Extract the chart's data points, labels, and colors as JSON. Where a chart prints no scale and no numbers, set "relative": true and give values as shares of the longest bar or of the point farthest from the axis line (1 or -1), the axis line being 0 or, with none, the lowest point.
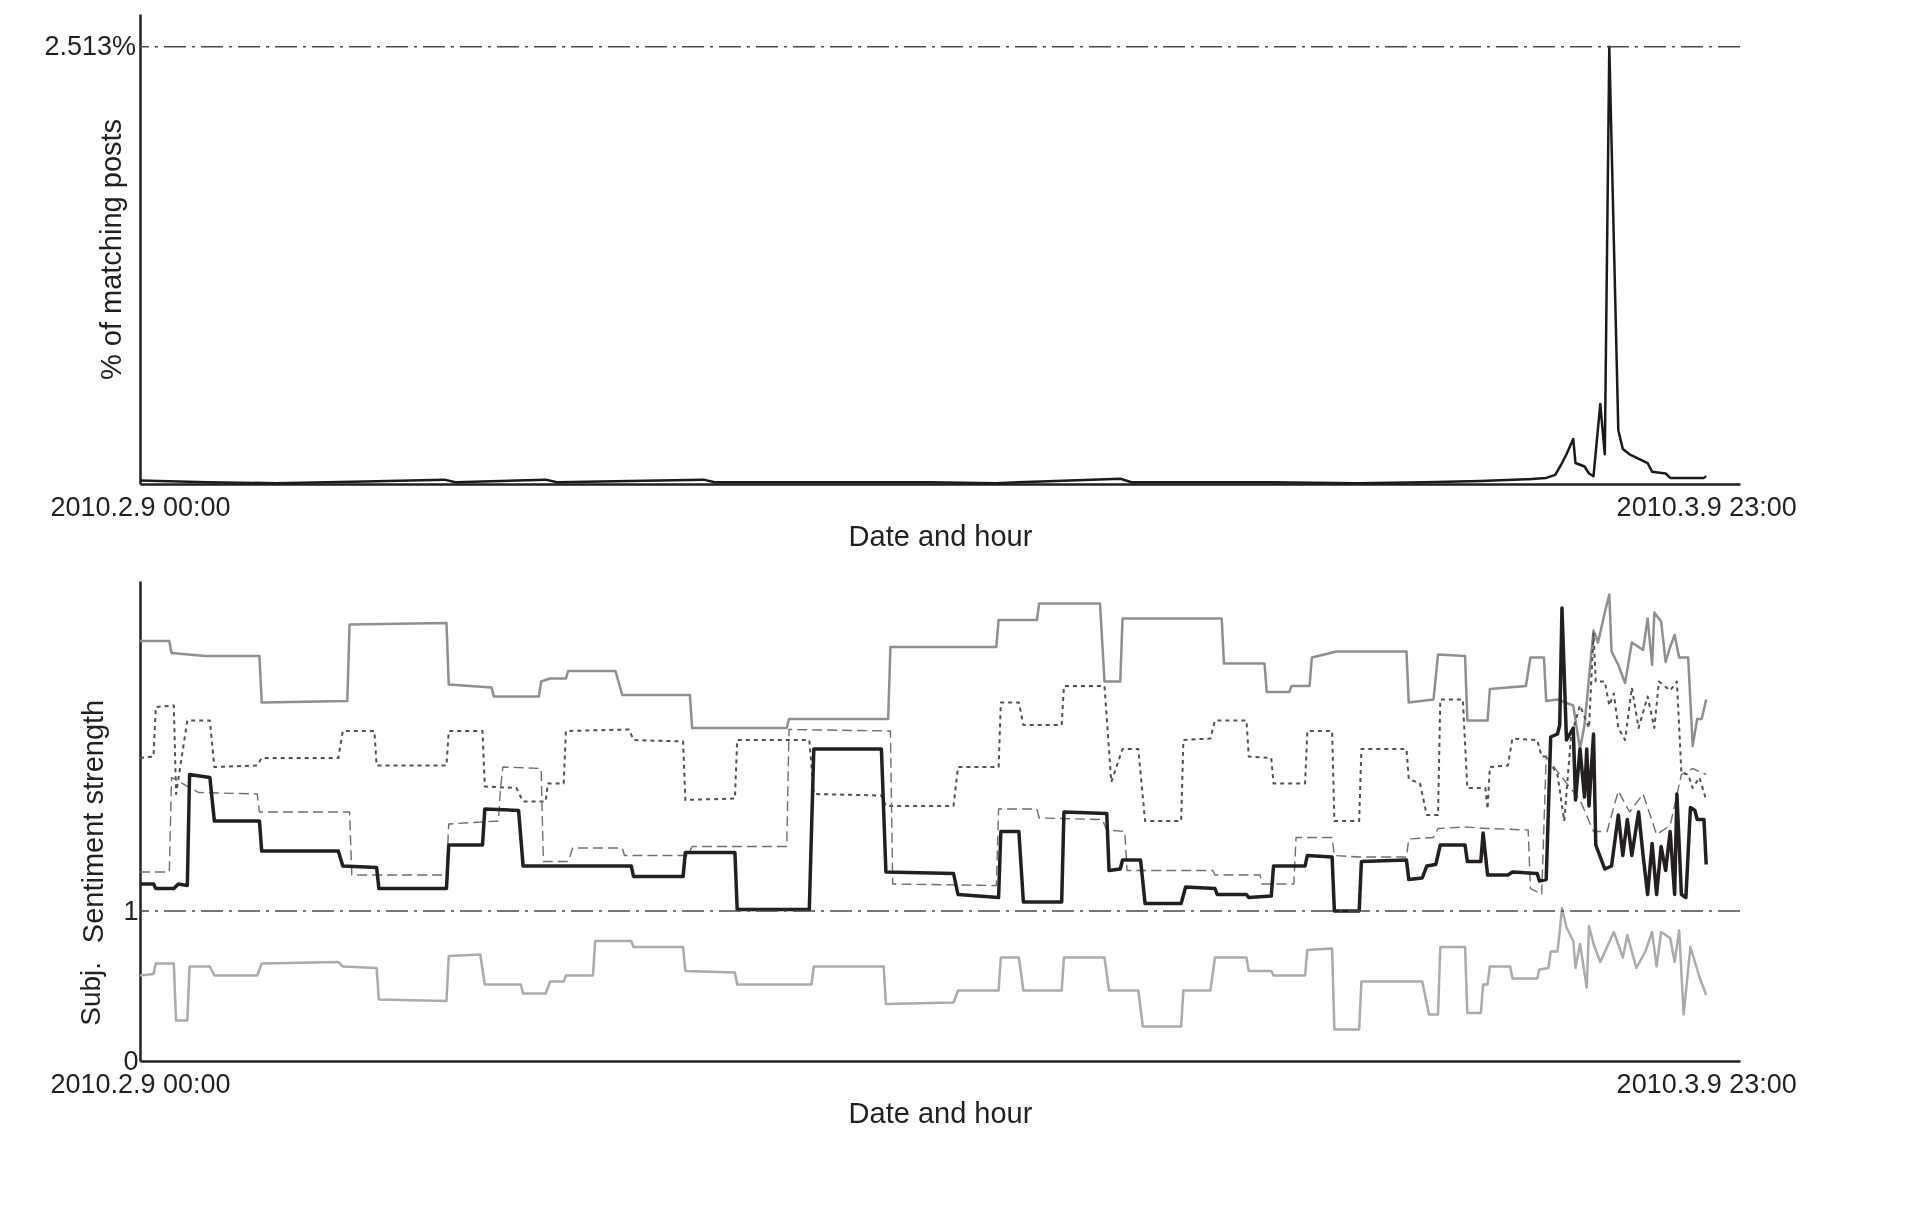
{
  "chart_data": [
    {
      "type": "line",
      "relative": true,
      "xlabel": "Date and hour",
      "ylabel": "% of matching posts",
      "annotations": [
        "2.513%"
      ],
      "xlim": [
        "2010-02-09T00:00",
        "2010-03-10T14:00"
      ],
      "xticks": [
        {
          "value": "2010-02-09T00:00",
          "label": "2010.2.9 00:00"
        },
        {
          "value": "2010-03-09T23:00",
          "label": "2010.3.9 23:00"
        }
      ],
      "ref_lines": [
        {
          "axis": "y",
          "value": 1,
          "color": "#4a4a4a",
          "line_style": "dashdot"
        }
      ],
      "series": [
        {
          "color": "#1a1a1a",
          "line_style": "solid",
          "x": [
            "2010-02-09T00:00",
            "2010-02-10T06:00",
            "2010-02-11T12:00",
            "2010-02-13T04:00",
            "2010-02-14T15:00",
            "2010-02-14T20:00",
            "2010-02-16T12:00",
            "2010-02-16T17:00",
            "2010-02-19T10:00",
            "2010-02-19T15:00",
            "2010-02-21T12:00",
            "2010-02-23T14:00",
            "2010-02-24T20:00",
            "2010-02-25T16:00",
            "2010-02-27T03:00",
            "2010-02-27T08:00",
            "2010-03-01T20:00",
            "2010-03-03T12:00",
            "2010-03-04T18:00",
            "2010-03-05T19:00",
            "2010-03-06T16:00",
            "2010-03-07T00:00",
            "2010-03-07T04:00",
            "2010-03-07T07:00",
            "2010-03-07T09:00",
            "2010-03-07T12:00",
            "2010-03-07T13:00",
            "2010-03-07T17:00",
            "2010-03-07T19:00",
            "2010-03-07T21:00",
            "2010-03-08T00:00",
            "2010-03-08T02:00",
            "2010-03-08T04:00",
            "2010-03-08T08:00",
            "2010-03-08T10:00",
            "2010-03-08T13:00",
            "2010-03-08T21:00",
            "2010-03-08T23:00",
            "2010-03-09T05:00",
            "2010-03-09T07:00",
            "2010-03-09T22:00",
            "2010-03-09T23:00"
          ],
          "values": [
            0.008,
            0.004,
            0.002,
            0.006,
            0.01,
            0.004,
            0.01,
            0.004,
            0.01,
            0.004,
            0.004,
            0.004,
            0.002,
            0.006,
            0.012,
            0.004,
            0.004,
            0.002,
            0.004,
            0.007,
            0.011,
            0.014,
            0.021,
            0.048,
            0.068,
            0.103,
            0.048,
            0.04,
            0.024,
            0.018,
            0.183,
            0.068,
            1,
            0.123,
            0.08,
            0.068,
            0.048,
            0.028,
            0.024,
            0.014,
            0.014,
            0.018
          ]
        }
      ]
    },
    {
      "type": "line",
      "xlabel": "Date and hour",
      "ylabel": "Sentiment strength",
      "annotations": [
        "Subj."
      ],
      "xlim": [
        "2010-02-09T00:00",
        "2010-03-10T14:00"
      ],
      "xticks": [
        {
          "value": "2010-02-09T00:00",
          "label": "2010.2.9 00:00"
        },
        {
          "value": "2010-03-09T23:00",
          "label": "2010.3.9 23:00"
        }
      ],
      "ylim": [
        0,
        3.2
      ],
      "yticks": [
        0,
        1
      ],
      "ref_lines": [
        {
          "axis": "y",
          "value": 1,
          "color": "#4a4a4a",
          "line_style": "dashdot"
        }
      ],
      "series": [
        {
          "color": "#8f8f8f",
          "line_style": "solid",
          "x": [
            "2010-02-09T00:00",
            "2010-02-09T13:00",
            "2010-02-09T14:00",
            "2010-02-10T05:00",
            "2010-02-11T05:00",
            "2010-02-11T06:00",
            "2010-02-12T20:00",
            "2010-02-12T21:00",
            "2010-02-14T16:00",
            "2010-02-14T17:00",
            "2010-02-15T12:00",
            "2010-02-15T13:00",
            "2010-02-16T09:00",
            "2010-02-16T10:00",
            "2010-02-16T14:00",
            "2010-02-16T21:00",
            "2010-02-16T22:00",
            "2010-02-17T19:00",
            "2010-02-17T22:00",
            "2010-02-19T04:00",
            "2010-02-19T05:00",
            "2010-02-20T23:00",
            "2010-02-21T00:00",
            "2010-02-22T20:00",
            "2010-02-22T21:00",
            "2010-02-24T20:00",
            "2010-02-24T21:00",
            "2010-02-25T14:00",
            "2010-02-25T15:00",
            "2010-02-26T18:00",
            "2010-02-26T20:00",
            "2010-02-27T03:00",
            "2010-02-27T04:00",
            "2010-03-01T00:00",
            "2010-03-01T01:00",
            "2010-03-01T19:00",
            "2010-03-01T20:00",
            "2010-03-02T06:00",
            "2010-03-02T07:00",
            "2010-03-02T15:00",
            "2010-03-02T16:00",
            "2010-03-03T03:00",
            "2010-03-04T10:00",
            "2010-03-04T11:00",
            "2010-03-04T22:00",
            "2010-03-05T00:00",
            "2010-03-05T12:00",
            "2010-03-05T13:00",
            "2010-03-05T22:00",
            "2010-03-05T23:00",
            "2010-03-06T15:00",
            "2010-03-06T17:00",
            "2010-03-06T23:00",
            "2010-03-07T00:00",
            "2010-03-07T05:00",
            "2010-03-07T12:00",
            "2010-03-07T15:00",
            "2010-03-07T17:00",
            "2010-03-07T21:00",
            "2010-03-07T23:00",
            "2010-03-08T02:00",
            "2010-03-08T04:00",
            "2010-03-08T05:00",
            "2010-03-08T08:00",
            "2010-03-08T11:00",
            "2010-03-08T14:00",
            "2010-03-08T19:00",
            "2010-03-08T21:00",
            "2010-03-08T23:00",
            "2010-03-09T00:00",
            "2010-03-09T03:00",
            "2010-03-09T05:00",
            "2010-03-09T07:00",
            "2010-03-09T09:00",
            "2010-03-09T11:00",
            "2010-03-09T15:00",
            "2010-03-09T17:00",
            "2010-03-09T19:00",
            "2010-03-09T21:00",
            "2010-03-09T23:00"
          ],
          "values": [
            2.8,
            2.8,
            2.72,
            2.7,
            2.7,
            2.39,
            2.4,
            2.91,
            2.92,
            2.51,
            2.49,
            2.43,
            2.43,
            2.53,
            2.55,
            2.55,
            2.6,
            2.6,
            2.44,
            2.44,
            2.22,
            2.22,
            2.28,
            2.28,
            2.76,
            2.76,
            2.94,
            2.94,
            3.05,
            3.05,
            2.53,
            2.53,
            2.95,
            2.95,
            2.65,
            2.65,
            2.46,
            2.46,
            2.5,
            2.5,
            2.69,
            2.73,
            2.73,
            2.39,
            2.41,
            2.71,
            2.7,
            2.27,
            2.27,
            2.48,
            2.5,
            2.69,
            2.69,
            2.4,
            2.41,
            2.37,
            2.08,
            2.24,
            2.87,
            2.79,
            2.99,
            3.11,
            2.73,
            2.64,
            2.52,
            2.79,
            2.74,
            2.95,
            2.64,
            2.99,
            2.93,
            2.66,
            2.76,
            2.84,
            2.69,
            2.69,
            2.1,
            2.28,
            2.28,
            2.41
          ]
        },
        {
          "color": "#505050",
          "line_style": "dotted",
          "x": [
            "2010-02-09T00:00",
            "2010-02-09T06:00",
            "2010-02-09T07:00",
            "2010-02-09T15:00",
            "2010-02-09T16:00",
            "2010-02-09T21:00",
            "2010-02-10T07:00",
            "2010-02-10T09:00",
            "2010-02-11T04:00",
            "2010-02-11T06:00",
            "2010-02-12T16:00",
            "2010-02-12T18:00",
            "2010-02-13T08:00",
            "2010-02-13T09:00",
            "2010-02-14T16:00",
            "2010-02-14T17:00",
            "2010-02-15T08:00",
            "2010-02-15T09:00",
            "2010-02-15T23:00",
            "2010-02-16T02:00",
            "2010-02-16T12:00",
            "2010-02-16T13:00",
            "2010-02-16T20:00",
            "2010-02-16T21:00",
            "2010-02-18T01:00",
            "2010-02-18T03:00",
            "2010-02-19T01:00",
            "2010-02-19T02:00",
            "2010-02-20T00:00",
            "2010-02-20T01:00",
            "2010-02-21T09:00",
            "2010-02-21T11:00",
            "2010-02-22T17:00",
            "2010-02-22T19:00",
            "2010-02-24T01:00",
            "2010-02-24T03:00",
            "2010-02-24T21:00",
            "2010-02-24T22:00",
            "2010-02-25T06:00",
            "2010-02-25T08:00",
            "2010-02-26T01:00",
            "2010-02-26T02:00",
            "2010-02-26T20:00",
            "2010-02-26T23:00",
            "2010-02-27T04:00",
            "2010-02-27T11:00",
            "2010-02-27T14:00",
            "2010-02-28T06:00",
            "2010-02-28T07:00",
            "2010-02-28T19:00",
            "2010-02-28T21:00",
            "2010-03-01T11:00",
            "2010-03-01T12:00",
            "2010-03-01T22:00",
            "2010-03-01T23:00",
            "2010-03-02T13:00",
            "2010-03-02T14:00",
            "2010-03-03T01:00",
            "2010-03-03T02:00",
            "2010-03-03T13:00",
            "2010-03-03T14:00",
            "2010-03-04T10:00",
            "2010-03-04T11:00",
            "2010-03-04T16:00",
            "2010-03-04T19:00",
            "2010-03-05T00:00",
            "2010-03-05T01:00",
            "2010-03-05T11:00",
            "2010-03-05T13:00",
            "2010-03-05T21:00",
            "2010-03-05T22:00",
            "2010-03-05T23:00",
            "2010-03-06T07:00",
            "2010-03-06T09:00",
            "2010-03-06T20:00",
            "2010-03-06T22:00",
            "2010-03-07T00:00",
            "2010-03-07T05:00",
            "2010-03-07T08:00",
            "2010-03-07T11:00",
            "2010-03-07T15:00",
            "2010-03-07T19:00",
            "2010-03-07T21:00",
            "2010-03-07T22:00",
            "2010-03-08T02:00",
            "2010-03-08T04:00",
            "2010-03-08T06:00",
            "2010-03-08T08:00",
            "2010-03-08T11:00",
            "2010-03-08T14:00",
            "2010-03-08T17:00",
            "2010-03-08T21:00",
            "2010-03-09T00:00",
            "2010-03-09T02:00",
            "2010-03-09T07:00",
            "2010-03-09T10:00",
            "2010-03-09T12:00",
            "2010-03-09T15:00",
            "2010-03-09T17:00",
            "2010-03-09T20:00",
            "2010-03-09T23:00"
          ],
          "values": [
            2.02,
            2.03,
            2.36,
            2.37,
            1.78,
            2.27,
            2.27,
            1.96,
            1.97,
            2.02,
            2.02,
            2.2,
            2.2,
            1.97,
            1.97,
            2.2,
            2.2,
            1.83,
            1.82,
            1.73,
            1.73,
            1.85,
            1.85,
            2.2,
            2.21,
            2.14,
            2.13,
            1.74,
            1.75,
            2.14,
            2.14,
            1.78,
            1.77,
            1.7,
            1.7,
            1.96,
            1.96,
            2.39,
            2.39,
            2.24,
            2.24,
            2.5,
            2.5,
            1.86,
            2.08,
            2.08,
            1.6,
            1.6,
            2.14,
            2.15,
            2.27,
            2.27,
            2.03,
            2.02,
            1.85,
            1.85,
            2.2,
            2.2,
            1.6,
            1.6,
            2.08,
            2.08,
            1.88,
            1.85,
            1.64,
            1.64,
            2.41,
            2.41,
            1.82,
            1.82,
            1.68,
            1.96,
            1.97,
            2.15,
            2.14,
            2.03,
            2.03,
            1.91,
            1.6,
            2.16,
            2.37,
            2.22,
            2.85,
            2.53,
            2.53,
            2.37,
            2.45,
            2.22,
            2.14,
            2.49,
            2.22,
            2.43,
            2.22,
            2.53,
            2.47,
            2.53,
            1.92,
            1.91,
            1.82,
            1.89,
            1.74
          ]
        },
        {
          "color": "#6e6e6e",
          "line_style": "dashed",
          "x": [
            "2010-02-09T00:00",
            "2010-02-09T13:00",
            "2010-02-09T14:00",
            "2010-02-10T02:00",
            "2010-02-11T04:00",
            "2010-02-11T05:00",
            "2010-02-12T21:00",
            "2010-02-12T22:00",
            "2010-02-14T16:00",
            "2010-02-14T17:00",
            "2010-02-15T15:00",
            "2010-02-15T16:00",
            "2010-02-15T17:00",
            "2010-02-16T10:00",
            "2010-02-16T11:00",
            "2010-02-16T12:00",
            "2010-02-16T22:00",
            "2010-02-17T00:00",
            "2010-02-17T22:00",
            "2010-02-17T23:00",
            "2010-02-19T03:00",
            "2010-02-19T05:00",
            "2010-02-20T23:00",
            "2010-02-21T00:00",
            "2010-02-22T21:00",
            "2010-02-22T22:00",
            "2010-02-24T20:00",
            "2010-02-24T21:00",
            "2010-02-25T14:00",
            "2010-02-25T15:00",
            "2010-02-26T19:00",
            "2010-02-26T21:00",
            "2010-02-27T05:00",
            "2010-02-27T06:00",
            "2010-02-28T20:00",
            "2010-02-28T21:00",
            "2010-03-01T17:00",
            "2010-03-01T18:00",
            "2010-03-02T08:00",
            "2010-03-02T09:00",
            "2010-03-03T01:00",
            "2010-03-03T02:00",
            "2010-03-03T13:00",
            "2010-03-04T10:00",
            "2010-03-04T11:00",
            "2010-03-04T22:00",
            "2010-03-05T00:00",
            "2010-03-05T12:00",
            "2010-03-05T22:00",
            "2010-03-06T16:00",
            "2010-03-06T17:00",
            "2010-03-06T22:00",
            "2010-03-07T00:00",
            "2010-03-07T06:00",
            "2010-03-07T15:00",
            "2010-03-07T21:00",
            "2010-03-08T03:00",
            "2010-03-08T08:00",
            "2010-03-08T13:00",
            "2010-03-08T19:00",
            "2010-03-09T01:00",
            "2010-03-09T07:00",
            "2010-03-09T12:00",
            "2010-03-09T17:00",
            "2010-03-09T23:00"
          ],
          "values": [
            1.26,
            1.26,
            1.89,
            1.79,
            1.78,
            1.66,
            1.66,
            1.24,
            1.24,
            1.58,
            1.6,
            1.82,
            1.96,
            1.95,
            1.33,
            1.33,
            1.33,
            1.42,
            1.42,
            1.37,
            1.37,
            1.43,
            1.43,
            2.21,
            2.2,
            1.18,
            1.17,
            1.68,
            1.68,
            1.62,
            1.61,
            1.54,
            1.53,
            1.27,
            1.27,
            1.24,
            1.24,
            1.18,
            1.18,
            1.49,
            1.49,
            1.37,
            1.36,
            1.36,
            1.48,
            1.49,
            1.55,
            1.56,
            1.55,
            1.54,
            1.15,
            1.11,
            2.03,
            1.91,
            1.74,
            1.53,
            1.53,
            1.8,
            1.66,
            1.78,
            1.51,
            1.57,
            1.91,
            1.95,
            1.91
          ]
        },
        {
          "color": "#231f20",
          "line_style": "solid",
          "x": [
            "2010-02-09T00:00",
            "2010-02-09T06:00",
            "2010-02-09T07:00",
            "2010-02-09T15:00",
            "2010-02-09T17:00",
            "2010-02-09T21:00",
            "2010-02-09T22:00",
            "2010-02-10T07:00",
            "2010-02-10T09:00",
            "2010-02-11T05:00",
            "2010-02-11T06:00",
            "2010-02-12T16:00",
            "2010-02-12T18:00",
            "2010-02-13T09:00",
            "2010-02-13T10:00",
            "2010-02-14T16:00",
            "2010-02-14T17:00",
            "2010-02-15T08:00",
            "2010-02-15T09:00",
            "2010-02-16T00:00",
            "2010-02-16T02:00",
            "2010-02-18T02:00",
            "2010-02-18T03:00",
            "2010-02-19T01:00",
            "2010-02-19T02:00",
            "2010-02-20T00:00",
            "2010-02-20T01:00",
            "2010-02-21T09:00",
            "2010-02-21T11:00",
            "2010-02-22T17:00",
            "2010-02-22T19:00",
            "2010-02-24T01:00",
            "2010-02-24T03:00",
            "2010-02-24T21:00",
            "2010-02-24T22:00",
            "2010-02-25T06:00",
            "2010-02-25T08:00",
            "2010-02-26T01:00",
            "2010-02-26T02:00",
            "2010-02-26T21:00",
            "2010-02-26T22:00",
            "2010-02-27T03:00",
            "2010-02-27T04:00",
            "2010-02-27T12:00",
            "2010-02-27T14:00",
            "2010-02-28T06:00",
            "2010-02-28T08:00",
            "2010-02-28T21:00",
            "2010-02-28T22:00",
            "2010-03-01T11:00",
            "2010-03-01T12:00",
            "2010-03-01T22:00",
            "2010-03-01T23:00",
            "2010-03-02T13:00",
            "2010-03-02T14:00",
            "2010-03-03T01:00",
            "2010-03-03T02:00",
            "2010-03-03T13:00",
            "2010-03-03T14:00",
            "2010-03-04T10:00",
            "2010-03-04T11:00",
            "2010-03-04T17:00",
            "2010-03-04T19:00",
            "2010-03-04T23:00",
            "2010-03-05T01:00",
            "2010-03-05T12:00",
            "2010-03-05T13:00",
            "2010-03-05T19:00",
            "2010-03-05T20:00",
            "2010-03-05T22:00",
            "2010-03-06T07:00",
            "2010-03-06T09:00",
            "2010-03-06T20:00",
            "2010-03-06T21:00",
            "2010-03-07T00:00",
            "2010-03-07T02:00",
            "2010-03-07T05:00",
            "2010-03-07T06:00",
            "2010-03-07T07:00",
            "2010-03-07T09:00",
            "2010-03-07T12:00",
            "2010-03-07T13:00",
            "2010-03-07T15:00",
            "2010-03-07T17:00",
            "2010-03-07T18:00",
            "2010-03-07T19:00",
            "2010-03-07T21:00",
            "2010-03-07T22:00",
            "2010-03-08T02:00",
            "2010-03-08T05:00",
            "2010-03-08T08:00",
            "2010-03-08T10:00",
            "2010-03-08T12:00",
            "2010-03-08T14:00",
            "2010-03-08T17:00",
            "2010-03-08T19:00",
            "2010-03-08T21:00",
            "2010-03-08T23:00",
            "2010-03-09T01:00",
            "2010-03-09T03:00",
            "2010-03-09T05:00",
            "2010-03-09T07:00",
            "2010-03-09T09:00",
            "2010-03-09T10:00",
            "2010-03-09T12:00",
            "2010-03-09T14:00",
            "2010-03-09T16:00",
            "2010-03-09T18:00",
            "2010-03-09T19:00",
            "2010-03-09T22:00",
            "2010-03-09T23:00"
          ],
          "values": [
            1.18,
            1.18,
            1.15,
            1.15,
            1.18,
            1.17,
            1.91,
            1.89,
            1.6,
            1.6,
            1.4,
            1.4,
            1.3,
            1.29,
            1.15,
            1.15,
            1.44,
            1.44,
            1.68,
            1.67,
            1.3,
            1.3,
            1.23,
            1.23,
            1.39,
            1.39,
            1.01,
            1.01,
            2.08,
            2.08,
            1.26,
            1.25,
            1.11,
            1.09,
            1.53,
            1.53,
            1.06,
            1.06,
            1.66,
            1.65,
            1.27,
            1.28,
            1.34,
            1.34,
            1.05,
            1.05,
            1.16,
            1.15,
            1.11,
            1.11,
            1.09,
            1.1,
            1.3,
            1.3,
            1.37,
            1.36,
            1.0,
            1.0,
            1.33,
            1.34,
            1.21,
            1.22,
            1.3,
            1.31,
            1.44,
            1.44,
            1.33,
            1.33,
            1.52,
            1.24,
            1.24,
            1.26,
            1.25,
            1.2,
            1.21,
            2.16,
            2.18,
            2.24,
            3.02,
            2.14,
            2.22,
            1.74,
            2.08,
            1.76,
            2.08,
            1.7,
            2.18,
            1.44,
            1.28,
            1.3,
            1.64,
            1.37,
            1.61,
            1.37,
            1.66,
            1.37,
            1.11,
            1.45,
            1.11,
            1.43,
            1.27,
            1.53,
            1.11,
            1.78,
            1.11,
            1.09,
            1.69,
            1.67,
            1.61,
            1.61,
            1.31
          ]
        },
        {
          "color": "#ababab",
          "line_style": "solid",
          "x": [
            "2010-02-09T00:00",
            "2010-02-09T06:00",
            "2010-02-09T07:00",
            "2010-02-09T15:00",
            "2010-02-09T16:00",
            "2010-02-09T21:00",
            "2010-02-09T22:00",
            "2010-02-10T07:00",
            "2010-02-10T09:00",
            "2010-02-11T04:00",
            "2010-02-11T06:00",
            "2010-02-12T16:00",
            "2010-02-12T18:00",
            "2010-02-13T09:00",
            "2010-02-13T10:00",
            "2010-02-14T16:00",
            "2010-02-14T17:00",
            "2010-02-15T07:00",
            "2010-02-15T09:00",
            "2010-02-16T01:00",
            "2010-02-16T02:00",
            "2010-02-16T12:00",
            "2010-02-16T14:00",
            "2010-02-16T20:00",
            "2010-02-16T21:00",
            "2010-02-17T09:00",
            "2010-02-17T10:00",
            "2010-02-18T02:00",
            "2010-02-18T03:00",
            "2010-02-19T01:00",
            "2010-02-19T02:00",
            "2010-02-20T00:00",
            "2010-02-20T01:00",
            "2010-02-21T10:00",
            "2010-02-21T11:00",
            "2010-02-22T18:00",
            "2010-02-22T19:00",
            "2010-02-24T01:00",
            "2010-02-24T03:00",
            "2010-02-24T21:00",
            "2010-02-24T22:00",
            "2010-02-25T06:00",
            "2010-02-25T08:00",
            "2010-02-26T01:00",
            "2010-02-26T02:00",
            "2010-02-26T20:00",
            "2010-02-26T22:00",
            "2010-02-27T11:00",
            "2010-02-27T13:00",
            "2010-02-28T06:00",
            "2010-02-28T07:00",
            "2010-02-28T19:00",
            "2010-02-28T21:00",
            "2010-03-01T11:00",
            "2010-03-01T12:00",
            "2010-03-01T22:00",
            "2010-03-01T23:00",
            "2010-03-02T13:00",
            "2010-03-02T14:00",
            "2010-03-03T01:00",
            "2010-03-03T02:00",
            "2010-03-03T13:00",
            "2010-03-03T14:00",
            "2010-03-04T17:00",
            "2010-03-04T20:00",
            "2010-03-05T00:00",
            "2010-03-05T01:00",
            "2010-03-05T12:00",
            "2010-03-05T13:00",
            "2010-03-05T19:00",
            "2010-03-05T20:00",
            "2010-03-05T22:00",
            "2010-03-05T23:00",
            "2010-03-06T08:00",
            "2010-03-06T09:00",
            "2010-03-06T20:00",
            "2010-03-06T21:00",
            "2010-03-07T01:00",
            "2010-03-07T02:00",
            "2010-03-07T05:00",
            "2010-03-07T06:00",
            "2010-03-07T07:00",
            "2010-03-07T09:00",
            "2010-03-07T12:00",
            "2010-03-07T13:00",
            "2010-03-07T15:00",
            "2010-03-07T18:00",
            "2010-03-07T19:00",
            "2010-03-07T21:00",
            "2010-03-08T00:00",
            "2010-03-08T03:00",
            "2010-03-08T06:00",
            "2010-03-08T10:00",
            "2010-03-08T12:00",
            "2010-03-08T16:00",
            "2010-03-08T20:00",
            "2010-03-08T23:00",
            "2010-03-09T01:00",
            "2010-03-09T03:00",
            "2010-03-09T07:00",
            "2010-03-09T09:00",
            "2010-03-09T11:00",
            "2010-03-09T13:00",
            "2010-03-09T16:00",
            "2010-03-09T18:00",
            "2010-03-09T20:00",
            "2010-03-09T23:00"
          ],
          "values": [
            0.57,
            0.58,
            0.65,
            0.65,
            0.27,
            0.27,
            0.63,
            0.63,
            0.57,
            0.57,
            0.65,
            0.66,
            0.63,
            0.62,
            0.41,
            0.4,
            0.7,
            0.71,
            0.51,
            0.51,
            0.45,
            0.45,
            0.53,
            0.53,
            0.57,
            0.57,
            0.8,
            0.8,
            0.76,
            0.76,
            0.6,
            0.59,
            0.51,
            0.51,
            0.63,
            0.63,
            0.38,
            0.39,
            0.47,
            0.47,
            0.69,
            0.69,
            0.47,
            0.47,
            0.69,
            0.69,
            0.47,
            0.47,
            0.23,
            0.23,
            0.47,
            0.47,
            0.69,
            0.69,
            0.6,
            0.6,
            0.57,
            0.57,
            0.74,
            0.75,
            0.21,
            0.21,
            0.53,
            0.53,
            0.31,
            0.31,
            0.76,
            0.76,
            0.32,
            0.32,
            0.51,
            0.51,
            0.63,
            0.63,
            0.55,
            0.55,
            0.61,
            0.62,
            0.73,
            0.73,
            0.86,
            1.02,
            0.89,
            0.8,
            0.62,
            0.78,
            0.49,
            0.9,
            0.78,
            0.66,
            0.76,
            0.86,
            0.69,
            0.84,
            0.62,
            0.73,
            0.86,
            0.63,
            0.86,
            0.82,
            0.66,
            0.87,
            0.31,
            0.76,
            0.66,
            0.56,
            0.44
          ]
        }
      ]
    }
  ]
}
